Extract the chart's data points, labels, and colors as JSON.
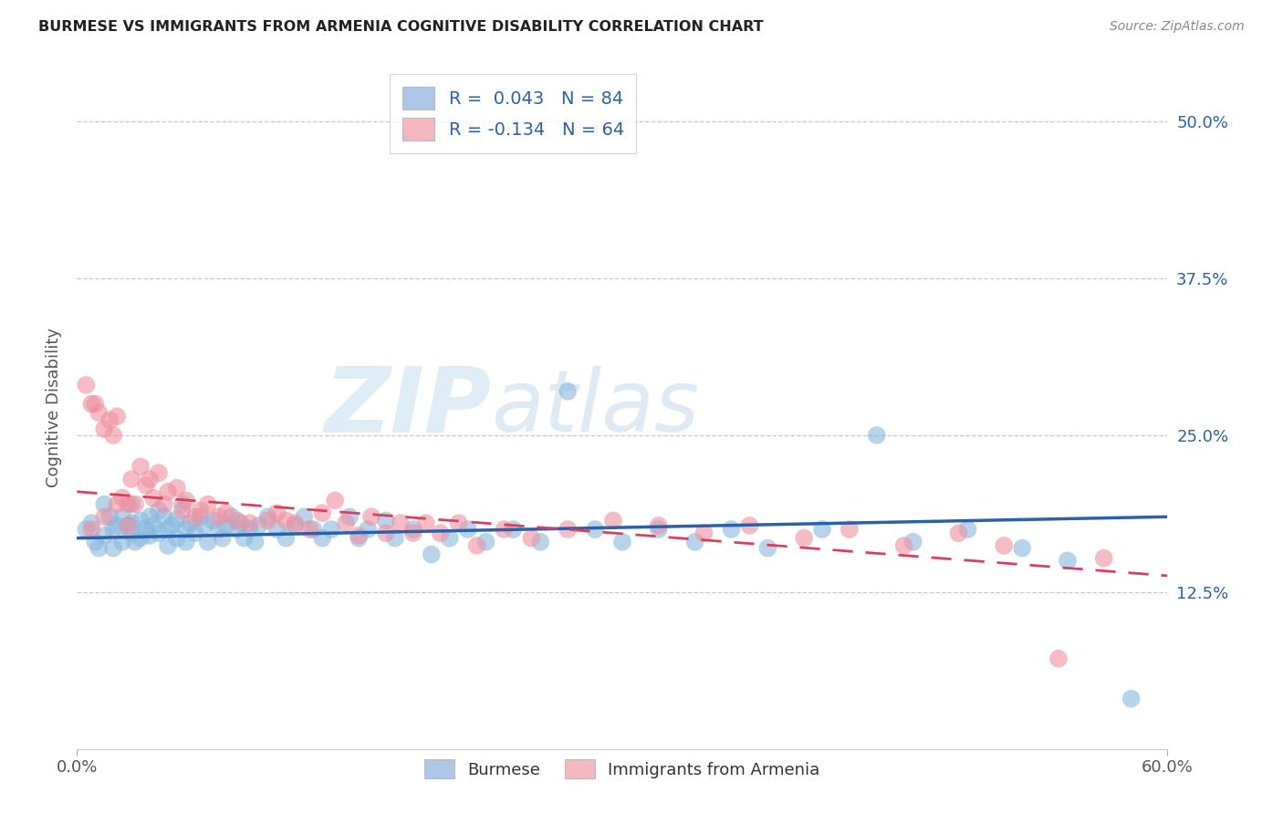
{
  "title": "BURMESE VS IMMIGRANTS FROM ARMENIA COGNITIVE DISABILITY CORRELATION CHART",
  "source": "Source: ZipAtlas.com",
  "ylabel": "Cognitive Disability",
  "ytick_labels": [
    "12.5%",
    "25.0%",
    "37.5%",
    "50.0%"
  ],
  "ytick_values": [
    0.125,
    0.25,
    0.375,
    0.5
  ],
  "xmin": 0.0,
  "xmax": 0.6,
  "ymin": 0.0,
  "ymax": 0.545,
  "legend1_label": "R =  0.043   N = 84",
  "legend2_label": "R = -0.134   N = 64",
  "legend_color1": "#aec6e8",
  "legend_color2": "#f4b8c1",
  "burmese_color": "#89b8de",
  "armenia_color": "#f090a0",
  "trendline1_color": "#2962a8",
  "trendline2_color": "#d94060",
  "watermark_zip": "ZIP",
  "watermark_atlas": "atlas",
  "burmese_label": "Burmese",
  "armenia_label": "Immigrants from Armenia",
  "burmese_R": 0.043,
  "armenia_R": -0.134,
  "burmese_scatter_x": [
    0.005,
    0.008,
    0.01,
    0.012,
    0.015,
    0.015,
    0.018,
    0.02,
    0.02,
    0.022,
    0.025,
    0.025,
    0.028,
    0.03,
    0.03,
    0.03,
    0.032,
    0.035,
    0.035,
    0.038,
    0.04,
    0.04,
    0.042,
    0.045,
    0.045,
    0.048,
    0.05,
    0.05,
    0.052,
    0.055,
    0.055,
    0.058,
    0.06,
    0.06,
    0.062,
    0.065,
    0.068,
    0.07,
    0.072,
    0.075,
    0.078,
    0.08,
    0.082,
    0.085,
    0.088,
    0.09,
    0.092,
    0.095,
    0.098,
    0.1,
    0.105,
    0.11,
    0.115,
    0.12,
    0.125,
    0.13,
    0.135,
    0.14,
    0.15,
    0.155,
    0.16,
    0.17,
    0.175,
    0.185,
    0.195,
    0.205,
    0.215,
    0.225,
    0.24,
    0.255,
    0.27,
    0.285,
    0.3,
    0.32,
    0.34,
    0.36,
    0.38,
    0.41,
    0.44,
    0.46,
    0.49,
    0.52,
    0.545,
    0.58
  ],
  "burmese_scatter_y": [
    0.175,
    0.18,
    0.165,
    0.16,
    0.195,
    0.17,
    0.185,
    0.175,
    0.16,
    0.178,
    0.185,
    0.165,
    0.178,
    0.195,
    0.18,
    0.172,
    0.165,
    0.182,
    0.168,
    0.175,
    0.185,
    0.17,
    0.178,
    0.19,
    0.172,
    0.185,
    0.175,
    0.162,
    0.178,
    0.183,
    0.168,
    0.195,
    0.175,
    0.165,
    0.18,
    0.172,
    0.185,
    0.178,
    0.165,
    0.182,
    0.175,
    0.168,
    0.178,
    0.185,
    0.175,
    0.18,
    0.168,
    0.175,
    0.165,
    0.178,
    0.185,
    0.175,
    0.168,
    0.178,
    0.185,
    0.175,
    0.168,
    0.175,
    0.185,
    0.168,
    0.175,
    0.182,
    0.168,
    0.175,
    0.155,
    0.168,
    0.175,
    0.165,
    0.175,
    0.165,
    0.285,
    0.175,
    0.165,
    0.175,
    0.165,
    0.175,
    0.16,
    0.175,
    0.25,
    0.165,
    0.175,
    0.16,
    0.15,
    0.04
  ],
  "armenia_scatter_x": [
    0.005,
    0.008,
    0.01,
    0.012,
    0.015,
    0.018,
    0.02,
    0.022,
    0.025,
    0.028,
    0.03,
    0.032,
    0.035,
    0.038,
    0.04,
    0.042,
    0.045,
    0.048,
    0.05,
    0.055,
    0.058,
    0.06,
    0.065,
    0.068,
    0.072,
    0.078,
    0.082,
    0.088,
    0.095,
    0.105,
    0.11,
    0.115,
    0.12,
    0.128,
    0.135,
    0.142,
    0.148,
    0.155,
    0.162,
    0.17,
    0.178,
    0.185,
    0.192,
    0.2,
    0.21,
    0.22,
    0.235,
    0.25,
    0.27,
    0.295,
    0.32,
    0.345,
    0.37,
    0.4,
    0.425,
    0.455,
    0.485,
    0.51,
    0.54,
    0.565,
    0.008,
    0.015,
    0.022,
    0.028
  ],
  "armenia_scatter_y": [
    0.29,
    0.275,
    0.275,
    0.268,
    0.255,
    0.262,
    0.25,
    0.265,
    0.2,
    0.195,
    0.215,
    0.195,
    0.225,
    0.21,
    0.215,
    0.2,
    0.22,
    0.195,
    0.205,
    0.208,
    0.19,
    0.198,
    0.185,
    0.19,
    0.195,
    0.185,
    0.188,
    0.182,
    0.18,
    0.182,
    0.188,
    0.182,
    0.18,
    0.175,
    0.188,
    0.198,
    0.18,
    0.17,
    0.185,
    0.172,
    0.18,
    0.172,
    0.18,
    0.172,
    0.18,
    0.162,
    0.175,
    0.168,
    0.175,
    0.182,
    0.178,
    0.172,
    0.178,
    0.168,
    0.175,
    0.162,
    0.172,
    0.162,
    0.072,
    0.152,
    0.175,
    0.185,
    0.195,
    0.178
  ],
  "trendline_x": [
    0.0,
    0.6
  ],
  "burmese_trend_y": [
    0.168,
    0.185
  ],
  "armenia_trend_y": [
    0.205,
    0.138
  ]
}
